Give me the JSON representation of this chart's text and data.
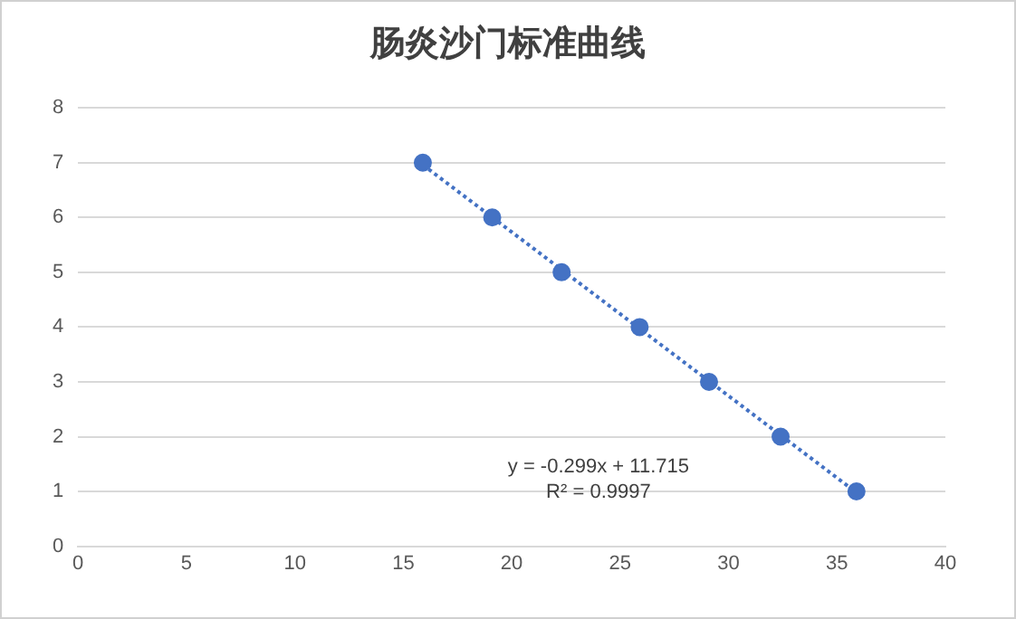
{
  "chart_data": {
    "type": "scatter",
    "title": "肠炎沙门标准曲线",
    "x": [
      15.9,
      19.1,
      22.3,
      25.9,
      29.1,
      32.4,
      35.9
    ],
    "series": [
      {
        "color": "#4472c4",
        "values": [
          7,
          6,
          5,
          4,
          3,
          2,
          1
        ],
        "marker": "circle"
      },
      {
        "type": "line",
        "color": "#4472c4",
        "x": [
          15.9,
          35.9
        ],
        "values": [
          6.96,
          0.98
        ],
        "line_style": "dotted",
        "marker": "none"
      }
    ],
    "xlim": [
      0,
      40
    ],
    "xticks": [
      0,
      5,
      10,
      15,
      20,
      25,
      30,
      35,
      40
    ],
    "ylim": [
      0,
      8
    ],
    "yticks": [
      0,
      1,
      2,
      3,
      4,
      5,
      6,
      7,
      8
    ],
    "grid": "y",
    "legend": false,
    "annotations": [
      "y = -0.299x + 11.715",
      "R² = 0.9997"
    ]
  }
}
